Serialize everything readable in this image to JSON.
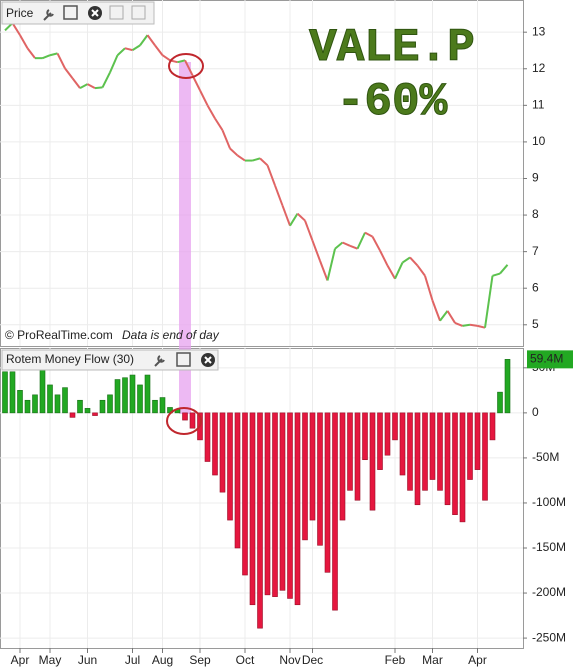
{
  "chart_data": [
    {
      "type": "line",
      "title": "Price",
      "annotations": [
        "VALE.P",
        "-60%"
      ],
      "source": "© ProRealTime.com",
      "note": "Data is end of day",
      "up_color": "#5cc24e",
      "down_color": "#e06464",
      "ylim": [
        4.42,
        13.88
      ],
      "yticks": [
        5,
        6,
        7,
        8,
        9,
        10,
        11,
        12,
        13
      ],
      "grid": true,
      "values": [
        13.05,
        13.25,
        12.92,
        12.56,
        12.29,
        12.29,
        12.37,
        12.42,
        12.01,
        11.74,
        11.47,
        11.58,
        11.47,
        11.49,
        11.9,
        12.37,
        12.56,
        12.51,
        12.64,
        12.92,
        12.64,
        12.37,
        12.23,
        12.18,
        12.23,
        11.82,
        11.41,
        11.0,
        10.64,
        10.32,
        9.82,
        9.63,
        9.49,
        9.49,
        9.55,
        9.36,
        8.81,
        8.26,
        7.71,
        8.04,
        7.85,
        7.3,
        6.75,
        6.21,
        7.08,
        7.25,
        7.16,
        7.08,
        7.52,
        7.41,
        7.03,
        6.62,
        6.26,
        6.7,
        6.84,
        6.62,
        6.34,
        5.66,
        5.11,
        5.38,
        5.05,
        4.97,
        5.0,
        4.97,
        4.92,
        6.34,
        6.4,
        6.64
      ]
    },
    {
      "type": "bar",
      "title": "Rotem Money Flow (30)",
      "up_color": "#22a822",
      "down_color": "#e5173f",
      "ylim": [
        -261,
        72
      ],
      "grid": true,
      "yticks": [
        {
          "value": 50,
          "label": "50M"
        },
        0,
        {
          "value": -50,
          "label": "-50M"
        },
        {
          "value": -100,
          "label": "-100M"
        },
        {
          "value": -150,
          "label": "-150M"
        },
        {
          "value": -200,
          "label": "-200M"
        },
        {
          "value": -250,
          "label": "-250M"
        }
      ],
      "categories": [
        null,
        null,
        "Apr",
        null,
        null,
        null,
        "May",
        null,
        null,
        null,
        null,
        "Jun",
        null,
        null,
        null,
        null,
        null,
        "Jul",
        null,
        null,
        null,
        "Aug",
        null,
        null,
        null,
        null,
        "Sep",
        null,
        null,
        null,
        null,
        null,
        "Oct",
        null,
        null,
        null,
        null,
        null,
        "Nov",
        null,
        null,
        "Dec",
        null,
        null,
        null,
        null,
        null,
        null,
        null,
        null,
        null,
        null,
        "Feb",
        null,
        null,
        null,
        null,
        "Mar",
        null,
        null,
        null,
        null,
        null,
        "Apr",
        null,
        null,
        null,
        null
      ],
      "values": [
        45.6,
        45.6,
        25,
        14,
        20,
        48,
        31,
        20,
        28,
        -5,
        14,
        5,
        -3,
        14,
        20,
        37,
        39,
        42,
        31,
        42,
        14,
        17,
        6,
        4,
        -8,
        -17,
        -30,
        -54,
        -69,
        -88,
        -119,
        -150,
        -180,
        -213,
        -239,
        -202,
        -204,
        -197,
        -206,
        -213,
        -141,
        -119,
        -147,
        -177,
        -219,
        -119,
        -86,
        -97,
        -52,
        -108,
        -63,
        -47,
        -30,
        -69,
        -86,
        -102,
        -86,
        -74,
        -86,
        -102,
        -113,
        -121,
        -74,
        -63,
        -97,
        -30,
        23,
        59.4
      ],
      "value_labels": [
        null,
        null,
        null,
        null,
        null,
        null,
        null,
        null,
        null,
        null,
        null,
        null,
        null,
        null,
        null,
        null,
        null,
        null,
        null,
        null,
        null,
        null,
        null,
        null,
        null,
        null,
        null,
        null,
        null,
        null,
        null,
        null,
        null,
        null,
        null,
        null,
        null,
        null,
        null,
        null,
        null,
        null,
        null,
        null,
        null,
        null,
        null,
        null,
        null,
        null,
        null,
        null,
        null,
        null,
        null,
        null,
        null,
        null,
        null,
        null,
        null,
        null,
        null,
        null,
        null,
        null,
        null,
        "59.4M"
      ]
    }
  ]
}
